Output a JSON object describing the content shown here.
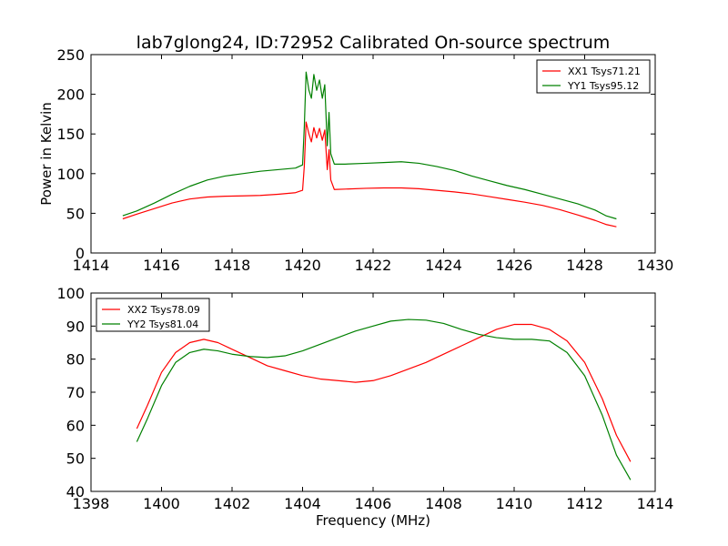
{
  "figure": {
    "title": "lab7glong24, ID:72952 Calibrated On-source spectrum"
  },
  "chart_data": [
    {
      "type": "line",
      "title": "lab7glong24, ID:72952 Calibrated On-source spectrum",
      "xlabel": "",
      "ylabel": "Power in Kelvin",
      "xlim": [
        1414,
        1430
      ],
      "ylim": [
        0,
        250
      ],
      "xticks": [
        1414,
        1416,
        1418,
        1420,
        1422,
        1424,
        1426,
        1428,
        1430
      ],
      "yticks": [
        0,
        50,
        100,
        150,
        200,
        250
      ],
      "grid": false,
      "legend_position": "upper right",
      "series": [
        {
          "name": "XX1 Tsys71.21",
          "color": "#ff0000",
          "points": [
            [
              1414.9,
              43
            ],
            [
              1415.3,
              49
            ],
            [
              1415.8,
              56
            ],
            [
              1416.3,
              63
            ],
            [
              1416.8,
              68
            ],
            [
              1417.3,
              70.5
            ],
            [
              1417.8,
              71.5
            ],
            [
              1418.3,
              72
            ],
            [
              1418.8,
              72.5
            ],
            [
              1419.3,
              74
            ],
            [
              1419.8,
              76
            ],
            [
              1420.0,
              79
            ],
            [
              1420.05,
              110
            ],
            [
              1420.1,
              165
            ],
            [
              1420.18,
              150
            ],
            [
              1420.25,
              140
            ],
            [
              1420.32,
              158
            ],
            [
              1420.4,
              145
            ],
            [
              1420.48,
              157
            ],
            [
              1420.56,
              142
            ],
            [
              1420.63,
              155
            ],
            [
              1420.7,
              105
            ],
            [
              1420.75,
              130
            ],
            [
              1420.8,
              92
            ],
            [
              1420.9,
              80
            ],
            [
              1421.2,
              80.5
            ],
            [
              1421.8,
              81.5
            ],
            [
              1422.3,
              82
            ],
            [
              1422.8,
              82
            ],
            [
              1423.3,
              81
            ],
            [
              1423.8,
              79
            ],
            [
              1424.3,
              77
            ],
            [
              1424.8,
              74.5
            ],
            [
              1425.3,
              71
            ],
            [
              1425.8,
              67.5
            ],
            [
              1426.3,
              64
            ],
            [
              1426.8,
              60
            ],
            [
              1427.3,
              54.5
            ],
            [
              1427.8,
              48
            ],
            [
              1428.3,
              41
            ],
            [
              1428.6,
              36
            ],
            [
              1428.9,
              33
            ]
          ]
        },
        {
          "name": "YY1 Tsys95.12",
          "color": "#008000",
          "points": [
            [
              1414.9,
              47
            ],
            [
              1415.3,
              53
            ],
            [
              1415.8,
              63
            ],
            [
              1416.3,
              74
            ],
            [
              1416.8,
              84
            ],
            [
              1417.3,
              92
            ],
            [
              1417.8,
              97
            ],
            [
              1418.3,
              100
            ],
            [
              1418.8,
              103
            ],
            [
              1419.3,
              105
            ],
            [
              1419.8,
              107
            ],
            [
              1420.0,
              111
            ],
            [
              1420.05,
              160
            ],
            [
              1420.1,
              228
            ],
            [
              1420.18,
              205
            ],
            [
              1420.25,
              195
            ],
            [
              1420.32,
              225
            ],
            [
              1420.4,
              205
            ],
            [
              1420.48,
              218
            ],
            [
              1420.56,
              195
            ],
            [
              1420.63,
              212
            ],
            [
              1420.7,
              135
            ],
            [
              1420.75,
              177
            ],
            [
              1420.8,
              125
            ],
            [
              1420.9,
              112
            ],
            [
              1421.2,
              112
            ],
            [
              1421.8,
              113
            ],
            [
              1422.3,
              114
            ],
            [
              1422.8,
              115
            ],
            [
              1423.3,
              113
            ],
            [
              1423.8,
              109
            ],
            [
              1424.3,
              104
            ],
            [
              1424.8,
              97
            ],
            [
              1425.3,
              91
            ],
            [
              1425.8,
              85
            ],
            [
              1426.3,
              80
            ],
            [
              1426.8,
              74
            ],
            [
              1427.3,
              68
            ],
            [
              1427.8,
              62
            ],
            [
              1428.3,
              54
            ],
            [
              1428.6,
              47
            ],
            [
              1428.9,
              43
            ]
          ]
        }
      ]
    },
    {
      "type": "line",
      "title": "",
      "xlabel": "Frequency (MHz)",
      "ylabel": "",
      "xlim": [
        1398,
        1414
      ],
      "ylim": [
        40,
        100
      ],
      "xticks": [
        1398,
        1400,
        1402,
        1404,
        1406,
        1408,
        1410,
        1412,
        1414
      ],
      "yticks": [
        40,
        50,
        60,
        70,
        80,
        90,
        100
      ],
      "grid": false,
      "legend_position": "upper left",
      "series": [
        {
          "name": "XX2 Tsys78.09",
          "color": "#ff0000",
          "points": [
            [
              1399.3,
              59
            ],
            [
              1399.6,
              66
            ],
            [
              1400.0,
              76
            ],
            [
              1400.4,
              82
            ],
            [
              1400.8,
              85
            ],
            [
              1401.2,
              86
            ],
            [
              1401.6,
              85
            ],
            [
              1402.0,
              83
            ],
            [
              1402.5,
              80.5
            ],
            [
              1403.0,
              78
            ],
            [
              1403.5,
              76.5
            ],
            [
              1404.0,
              75
            ],
            [
              1404.5,
              74
            ],
            [
              1405.0,
              73.5
            ],
            [
              1405.5,
              73
            ],
            [
              1406.0,
              73.5
            ],
            [
              1406.5,
              75
            ],
            [
              1407.0,
              77
            ],
            [
              1407.5,
              79
            ],
            [
              1408.0,
              81.5
            ],
            [
              1408.5,
              84
            ],
            [
              1409.0,
              86.5
            ],
            [
              1409.5,
              89
            ],
            [
              1410.0,
              90.5
            ],
            [
              1410.5,
              90.5
            ],
            [
              1411.0,
              89
            ],
            [
              1411.5,
              85.5
            ],
            [
              1412.0,
              79
            ],
            [
              1412.5,
              68
            ],
            [
              1412.9,
              57
            ],
            [
              1413.3,
              49
            ]
          ]
        },
        {
          "name": "YY2 Tsys81.04",
          "color": "#008000",
          "points": [
            [
              1399.3,
              55
            ],
            [
              1399.6,
              62
            ],
            [
              1400.0,
              72
            ],
            [
              1400.4,
              79
            ],
            [
              1400.8,
              82
            ],
            [
              1401.2,
              83
            ],
            [
              1401.6,
              82.5
            ],
            [
              1402.0,
              81.5
            ],
            [
              1402.5,
              80.8
            ],
            [
              1403.0,
              80.5
            ],
            [
              1403.5,
              81
            ],
            [
              1404.0,
              82.5
            ],
            [
              1404.5,
              84.5
            ],
            [
              1405.0,
              86.5
            ],
            [
              1405.5,
              88.5
            ],
            [
              1406.0,
              90
            ],
            [
              1406.5,
              91.5
            ],
            [
              1407.0,
              92
            ],
            [
              1407.5,
              91.8
            ],
            [
              1408.0,
              90.8
            ],
            [
              1408.5,
              89
            ],
            [
              1409.0,
              87.5
            ],
            [
              1409.5,
              86.5
            ],
            [
              1410.0,
              86
            ],
            [
              1410.5,
              86
            ],
            [
              1411.0,
              85.5
            ],
            [
              1411.5,
              82
            ],
            [
              1412.0,
              75
            ],
            [
              1412.5,
              63
            ],
            [
              1412.9,
              51
            ],
            [
              1413.3,
              43.5
            ]
          ]
        }
      ]
    }
  ]
}
